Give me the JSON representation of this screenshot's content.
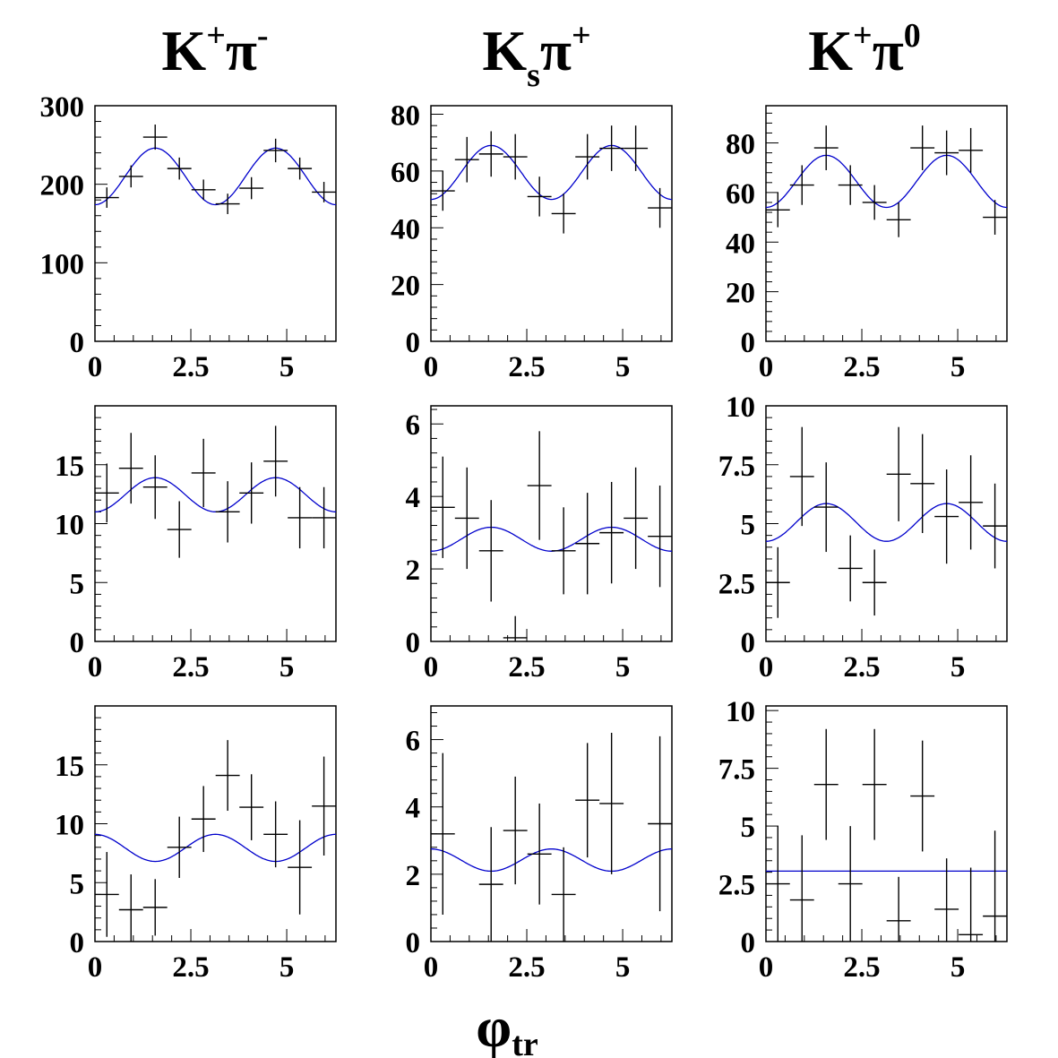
{
  "columns": [
    {
      "base": "K",
      "sup1": "+",
      "pi": "π",
      "sub": "",
      "sup2": "-"
    },
    {
      "base": "K",
      "sup1": "",
      "pi": "π",
      "sub": "s",
      "sup2": "+"
    },
    {
      "base": "K",
      "sup1": "+",
      "pi": "π",
      "sub": "",
      "sup2": "0"
    }
  ],
  "xlabel": {
    "main": "φ",
    "sub": "tr"
  },
  "colors": {
    "fit": "#0000cc",
    "data": "#000000",
    "frame": "#000000"
  },
  "chart_data": [
    {
      "type": "scatter",
      "row": 1,
      "col": 1,
      "column_label": "K+π-",
      "xlim": [
        0,
        6.283
      ],
      "ylim": [
        0,
        300
      ],
      "yticks": [
        0,
        100,
        200,
        300
      ],
      "ytick_labels": [
        "0",
        "100",
        "200",
        "300"
      ],
      "xticks": [
        0,
        2.5,
        5
      ],
      "xtick_labels": [
        "0",
        "2.5",
        "5"
      ],
      "x": [
        0.31,
        0.94,
        1.57,
        2.2,
        2.83,
        3.46,
        4.08,
        4.71,
        5.34,
        5.97
      ],
      "y": [
        183,
        210,
        260,
        220,
        193,
        175,
        195,
        243,
        220,
        190
      ],
      "yerr": [
        13,
        14,
        16,
        14,
        13,
        13,
        14,
        15,
        14,
        13
      ],
      "fit": {
        "a": 210,
        "b": -36,
        "n": 2
      }
    },
    {
      "type": "scatter",
      "row": 1,
      "col": 2,
      "column_label": "Ksπ+",
      "xlim": [
        0,
        6.283
      ],
      "ylim": [
        0,
        83
      ],
      "yticks": [
        0,
        20,
        40,
        60,
        80
      ],
      "ytick_labels": [
        "0",
        "20",
        "40",
        "60",
        "80"
      ],
      "xticks": [
        0,
        2.5,
        5
      ],
      "xtick_labels": [
        "0",
        "2.5",
        "5"
      ],
      "x": [
        0.31,
        0.94,
        1.57,
        2.2,
        2.83,
        3.46,
        4.08,
        4.71,
        5.34,
        5.97
      ],
      "y": [
        53,
        64,
        66,
        65,
        51,
        45,
        65,
        68,
        68,
        47
      ],
      "yerr": [
        7,
        8,
        8,
        8,
        7,
        7,
        8,
        8,
        8,
        7
      ],
      "fit": {
        "a": 59.5,
        "b": -9.5,
        "n": 2
      }
    },
    {
      "type": "scatter",
      "row": 1,
      "col": 3,
      "column_label": "K+π0",
      "xlim": [
        0,
        6.283
      ],
      "ylim": [
        0,
        95
      ],
      "yticks": [
        0,
        20,
        40,
        60,
        80
      ],
      "ytick_labels": [
        "0",
        "20",
        "40",
        "60",
        "80"
      ],
      "xticks": [
        0,
        2.5,
        5
      ],
      "xtick_labels": [
        "0",
        "2.5",
        "5"
      ],
      "x": [
        0.31,
        0.94,
        1.57,
        2.2,
        2.83,
        3.46,
        4.08,
        4.71,
        5.34,
        5.97
      ],
      "y": [
        53,
        63,
        78,
        63,
        56,
        49,
        78,
        76,
        77,
        50
      ],
      "yerr": [
        7,
        8,
        9,
        8,
        7,
        7,
        9,
        9,
        9,
        7
      ],
      "fit": {
        "a": 64.5,
        "b": -10.5,
        "n": 2
      }
    },
    {
      "type": "scatter",
      "row": 2,
      "col": 1,
      "column_label": "K+π-",
      "xlim": [
        0,
        6.283
      ],
      "ylim": [
        0,
        20
      ],
      "yticks": [
        0,
        5,
        10,
        15
      ],
      "ytick_labels": [
        "0",
        "5",
        "10",
        "15"
      ],
      "xticks": [
        0,
        2.5,
        5
      ],
      "xtick_labels": [
        "0",
        "2.5",
        "5"
      ],
      "x": [
        0.31,
        0.94,
        1.57,
        2.2,
        2.83,
        3.46,
        4.08,
        4.71,
        5.34,
        5.97
      ],
      "y": [
        12.6,
        14.7,
        13.1,
        9.5,
        14.3,
        11.0,
        12.6,
        15.3,
        10.5,
        10.5
      ],
      "yerr": [
        2.5,
        3.0,
        2.7,
        2.4,
        2.9,
        2.6,
        2.6,
        3.0,
        2.6,
        2.6
      ],
      "fit": {
        "a": 12.45,
        "b": -1.45,
        "n": 2
      }
    },
    {
      "type": "scatter",
      "row": 2,
      "col": 2,
      "column_label": "Ksπ+",
      "xlim": [
        0,
        6.283
      ],
      "ylim": [
        0,
        6.5
      ],
      "yticks": [
        0,
        2,
        4,
        6
      ],
      "ytick_labels": [
        "0",
        "2",
        "4",
        "6"
      ],
      "xticks": [
        0,
        2.5,
        5
      ],
      "xtick_labels": [
        "0",
        "2.5",
        "5"
      ],
      "x": [
        0.31,
        0.94,
        1.57,
        2.2,
        2.83,
        3.46,
        4.08,
        4.71,
        5.34,
        5.97
      ],
      "y": [
        3.7,
        3.4,
        2.5,
        0.1,
        4.3,
        2.5,
        2.7,
        3.0,
        3.4,
        2.9
      ],
      "yerr": [
        1.4,
        1.4,
        1.4,
        0.6,
        1.5,
        1.2,
        1.4,
        1.4,
        1.4,
        1.4
      ],
      "fit": {
        "a": 2.82,
        "b": -0.33,
        "n": 2
      }
    },
    {
      "type": "scatter",
      "row": 2,
      "col": 3,
      "column_label": "K+π0",
      "xlim": [
        0,
        6.283
      ],
      "ylim": [
        0,
        10
      ],
      "yticks": [
        0,
        2.5,
        5,
        7.5,
        10
      ],
      "ytick_labels": [
        "0",
        "2.5",
        "5",
        "7.5",
        "10"
      ],
      "xticks": [
        0,
        2.5,
        5
      ],
      "xtick_labels": [
        "0",
        "2.5",
        "5"
      ],
      "x": [
        0.31,
        0.94,
        1.57,
        2.2,
        2.83,
        3.46,
        4.08,
        4.71,
        5.34,
        5.97
      ],
      "y": [
        2.5,
        7.0,
        5.7,
        3.1,
        2.5,
        7.1,
        6.7,
        5.3,
        5.9,
        4.9
      ],
      "yerr": [
        1.5,
        2.1,
        1.9,
        1.4,
        1.4,
        2.0,
        2.1,
        2.0,
        2.0,
        1.8
      ],
      "fit": {
        "a": 5.05,
        "b": -0.8,
        "n": 2
      }
    },
    {
      "type": "scatter",
      "row": 3,
      "col": 1,
      "column_label": "K+π-",
      "xlim": [
        0,
        6.283
      ],
      "ylim": [
        0,
        20
      ],
      "yticks": [
        0,
        5,
        10,
        15
      ],
      "ytick_labels": [
        "0",
        "5",
        "10",
        "15"
      ],
      "xticks": [
        0,
        2.5,
        5
      ],
      "xtick_labels": [
        "0",
        "2.5",
        "5"
      ],
      "x": [
        0.31,
        0.94,
        1.57,
        2.2,
        2.83,
        3.46,
        4.08,
        4.71,
        5.34,
        5.97
      ],
      "y": [
        4.0,
        2.7,
        2.9,
        8.0,
        10.4,
        14.1,
        11.4,
        9.1,
        6.3,
        11.5
      ],
      "yerr": [
        3.6,
        3.0,
        2.4,
        2.6,
        2.8,
        3.0,
        2.8,
        2.8,
        4.0,
        4.2
      ],
      "fit": {
        "a": 7.95,
        "b": 1.15,
        "n": 2
      }
    },
    {
      "type": "scatter",
      "row": 3,
      "col": 2,
      "column_label": "Ksπ+",
      "xlim": [
        0,
        6.283
      ],
      "ylim": [
        0,
        7
      ],
      "yticks": [
        0,
        2,
        4,
        6
      ],
      "ytick_labels": [
        "0",
        "2",
        "4",
        "6"
      ],
      "xticks": [
        0,
        2.5,
        5
      ],
      "xtick_labels": [
        "0",
        "2.5",
        "5"
      ],
      "x": [
        0.31,
        0.94,
        1.57,
        2.2,
        2.83,
        3.46,
        4.08,
        4.71,
        5.34,
        5.97
      ],
      "y": [
        3.2,
        0,
        1.7,
        3.3,
        2.6,
        1.4,
        4.2,
        4.1,
        0,
        3.5
      ],
      "yerr": [
        2.4,
        0,
        1.7,
        1.6,
        1.5,
        1.4,
        1.7,
        2.1,
        0,
        2.6
      ],
      "fit": {
        "a": 2.42,
        "b": 0.33,
        "n": 2
      }
    },
    {
      "type": "scatter",
      "row": 3,
      "col": 3,
      "column_label": "K+π0",
      "xlim": [
        0,
        6.283
      ],
      "ylim": [
        0,
        10.2
      ],
      "yticks": [
        0,
        2.5,
        5,
        7.5,
        10
      ],
      "ytick_labels": [
        "0",
        "2.5",
        "5",
        "7.5",
        "10"
      ],
      "xticks": [
        0,
        2.5,
        5
      ],
      "xtick_labels": [
        "0",
        "2.5",
        "5"
      ],
      "x": [
        0.31,
        0.94,
        1.57,
        2.2,
        2.83,
        3.46,
        4.08,
        4.71,
        5.34,
        5.97
      ],
      "y": [
        2.5,
        1.8,
        6.8,
        2.5,
        6.8,
        0.9,
        6.3,
        1.4,
        0.3,
        1.1
      ],
      "yerr": [
        2.5,
        2.8,
        2.4,
        2.5,
        2.4,
        1.9,
        2.4,
        2.2,
        2.9,
        3.7
      ],
      "fit": {
        "a": 3.05,
        "b": 0,
        "n": 2
      }
    }
  ]
}
